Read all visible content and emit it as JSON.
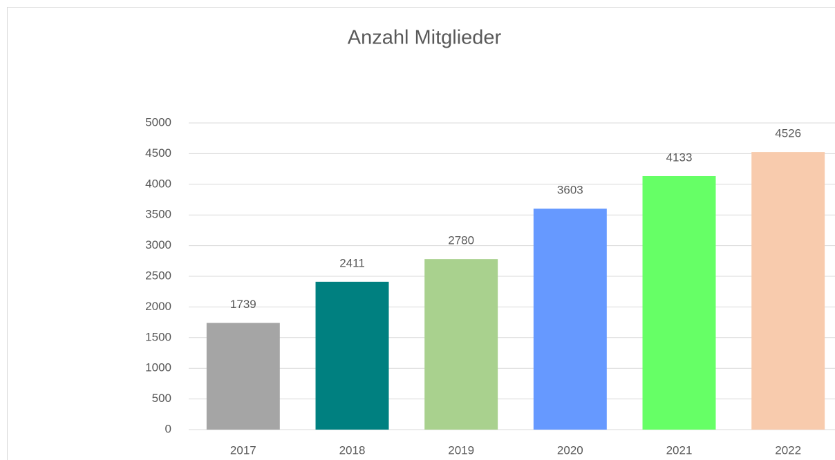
{
  "chart_data": {
    "type": "bar",
    "title": "Anzahl Mitglieder",
    "categories": [
      "2017",
      "2018",
      "2019",
      "2020",
      "2021",
      "2022"
    ],
    "values": [
      1739,
      2411,
      2780,
      3603,
      4133,
      4526
    ],
    "colors": [
      "#a5a5a5",
      "#008080",
      "#a9d18e",
      "#6699ff",
      "#66ff66",
      "#f8cbad"
    ],
    "ylim": [
      0,
      5000
    ],
    "yticks": [
      0,
      500,
      1000,
      1500,
      2000,
      2500,
      3000,
      3500,
      4000,
      4500,
      5000
    ],
    "grid": true
  }
}
